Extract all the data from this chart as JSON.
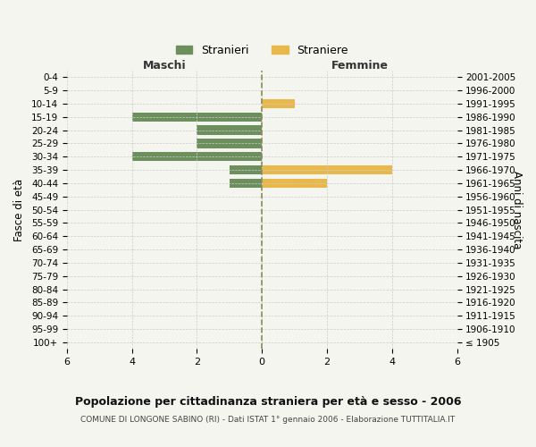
{
  "age_groups": [
    "100+",
    "95-99",
    "90-94",
    "85-89",
    "80-84",
    "75-79",
    "70-74",
    "65-69",
    "60-64",
    "55-59",
    "50-54",
    "45-49",
    "40-44",
    "35-39",
    "30-34",
    "25-29",
    "20-24",
    "15-19",
    "10-14",
    "5-9",
    "0-4"
  ],
  "birth_years": [
    "≤ 1905",
    "1906-1910",
    "1911-1915",
    "1916-1920",
    "1921-1925",
    "1926-1930",
    "1931-1935",
    "1936-1940",
    "1941-1945",
    "1946-1950",
    "1951-1955",
    "1956-1960",
    "1961-1965",
    "1966-1970",
    "1971-1975",
    "1976-1980",
    "1981-1985",
    "1986-1990",
    "1991-1995",
    "1996-2000",
    "2001-2005"
  ],
  "males": [
    0,
    0,
    0,
    0,
    0,
    0,
    0,
    0,
    0,
    0,
    0,
    0,
    1,
    1,
    4,
    2,
    2,
    4,
    0,
    0,
    0
  ],
  "females": [
    0,
    0,
    0,
    0,
    0,
    0,
    0,
    0,
    0,
    0,
    0,
    0,
    2,
    4,
    0,
    0,
    0,
    0,
    1,
    0,
    0
  ],
  "male_color": "#6d8f5e",
  "female_color": "#e8b84b",
  "background_color": "#f5f5f0",
  "grid_color": "#cccccc",
  "center_line_color": "#8b8b5a",
  "xlim": 6,
  "title": "Popolazione per cittadinanza straniera per età e sesso - 2006",
  "subtitle": "COMUNE DI LONGONE SABINO (RI) - Dati ISTAT 1° gennaio 2006 - Elaborazione TUTTITALIA.IT",
  "left_label": "Maschi",
  "right_label": "Femmine",
  "left_axis_label": "Fasce di età",
  "right_axis_label": "Anni di nascita",
  "legend_male": "Stranieri",
  "legend_female": "Straniere"
}
